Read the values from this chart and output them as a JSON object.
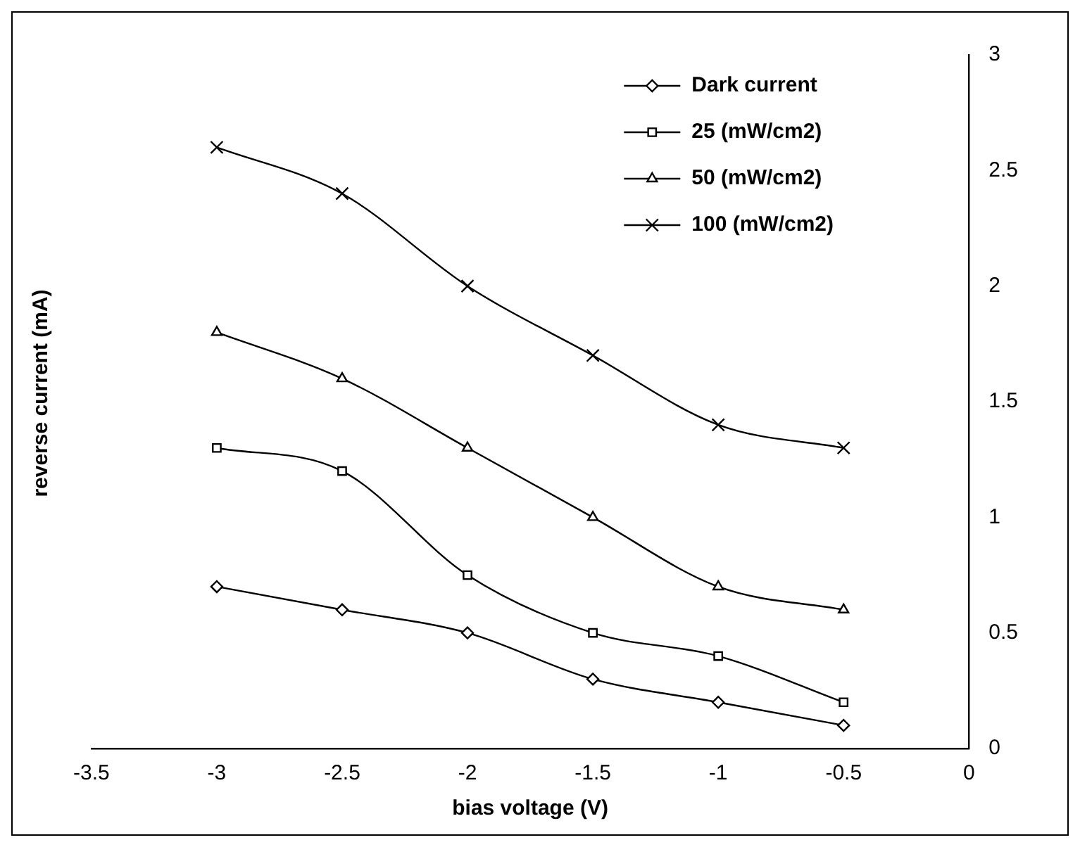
{
  "chart_data": {
    "type": "line",
    "xlabel": "bias voltage (V)",
    "ylabel": "reverse current (mA)",
    "x": [
      -3,
      -2.5,
      -2,
      -1.5,
      -1,
      -0.5
    ],
    "xlim": [
      -3.5,
      0
    ],
    "xticks": [
      -3.5,
      -3,
      -2.5,
      -2,
      -1.5,
      -1,
      -0.5,
      0
    ],
    "ylim": [
      0,
      3
    ],
    "yticks": [
      0,
      0.5,
      1,
      1.5,
      2,
      2.5,
      3
    ],
    "grid": false,
    "legend": "top right",
    "line_style": "solid",
    "series": [
      {
        "name": "Dark current",
        "color": "#000000",
        "marker": "diamond",
        "values": [
          0.7,
          0.6,
          0.5,
          0.3,
          0.2,
          0.1
        ]
      },
      {
        "name": "25 (mW/cm2)",
        "color": "#000000",
        "marker": "square",
        "values": [
          1.3,
          1.2,
          0.75,
          0.5,
          0.4,
          0.2
        ]
      },
      {
        "name": "50 (mW/cm2)",
        "color": "#000000",
        "marker": "triangle",
        "values": [
          1.8,
          1.6,
          1.3,
          1.0,
          0.7,
          0.6
        ]
      },
      {
        "name": "100 (mW/cm2)",
        "color": "#000000",
        "marker": "cross",
        "values": [
          2.6,
          2.4,
          2.0,
          1.7,
          1.4,
          1.3
        ]
      }
    ]
  }
}
